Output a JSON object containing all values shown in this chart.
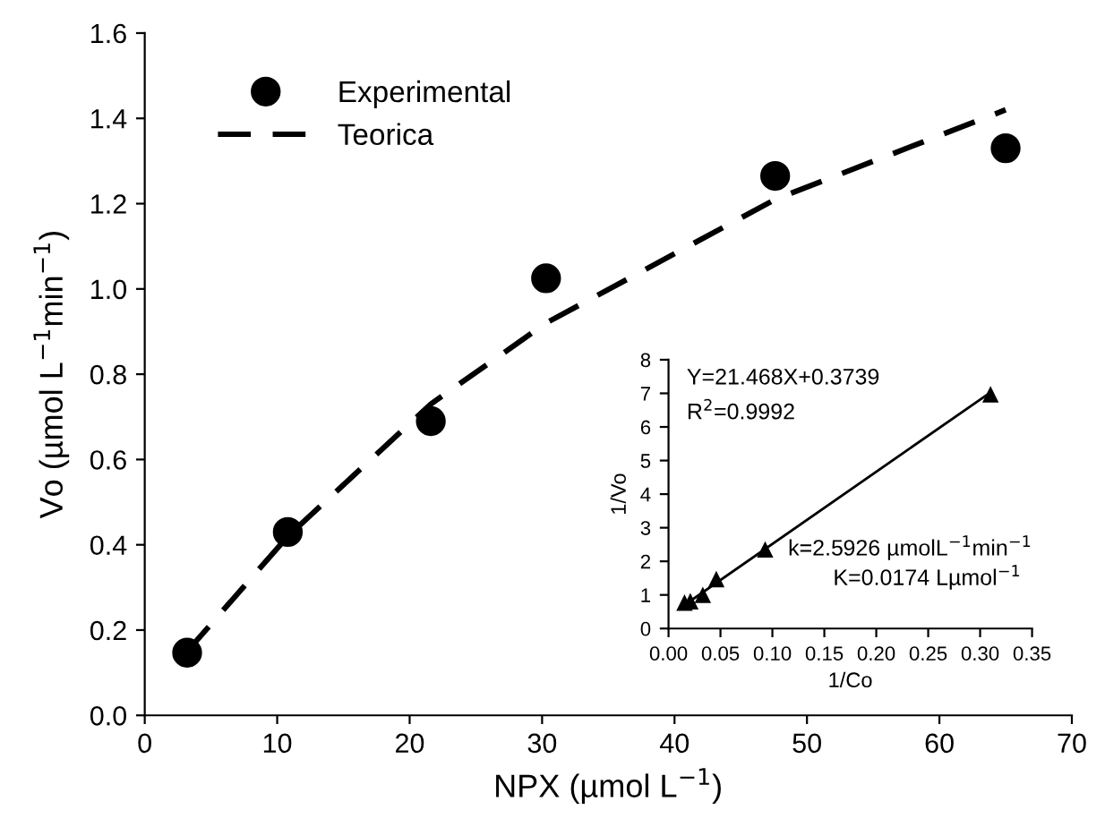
{
  "chart_data": [
    {
      "type": "scatter",
      "xlabel": "NPX (µmol L$^{−1}$)",
      "ylabel": "Vo (µmol L$^{−1}$min$^{−1}$)",
      "xlim": [
        0,
        70
      ],
      "xticks": [
        0,
        10,
        20,
        30,
        40,
        50,
        60,
        70
      ],
      "ylim": [
        0,
        1.6
      ],
      "yticks": [
        {
          "value": 0,
          "label": "0.0"
        },
        0.2,
        0.4,
        0.6,
        0.8,
        {
          "value": 1,
          "label": "1.0"
        },
        1.2,
        1.4,
        1.6
      ],
      "grid": false,
      "legend": "top left",
      "series": [
        {
          "name": "Experimental",
          "marker": "circle",
          "color": "#000000",
          "x": [
            3.2,
            10.8,
            21.6,
            30.3,
            47.6,
            65.0
          ],
          "values": [
            0.147,
            0.43,
            0.69,
            1.025,
            1.265,
            1.33
          ]
        },
        {
          "name": "Teorica",
          "type": "line",
          "line_style": "dashed",
          "color": "#000000",
          "x": [
            3.2,
            10.8,
            21.6,
            30.3,
            47.6,
            65.0
          ],
          "values": [
            0.15,
            0.42,
            0.73,
            0.92,
            1.21,
            1.42
          ]
        }
      ]
    },
    {
      "type": "scatter",
      "xlabel": "1/Co",
      "ylabel": "1/Vo",
      "xlim": [
        0,
        0.35
      ],
      "xticks": [
        {
          "value": 0,
          "label": "0.00"
        },
        0.05,
        {
          "value": 0.1,
          "label": "0.10"
        },
        0.15,
        {
          "value": 0.2,
          "label": "0.20"
        },
        0.25,
        {
          "value": 0.3,
          "label": "0.30"
        },
        0.35
      ],
      "ylim": [
        0,
        8
      ],
      "yticks": [
        0,
        1,
        2,
        3,
        4,
        5,
        6,
        7,
        8
      ],
      "grid": false,
      "annotations": [
        "Y=21.468X+0.3739",
        "R$^{2}$=0.9992",
        "k=2.5926 µmolL$^{−1}$min$^{−1}$",
        "K=0.0174 Lµmol$^{−1}$"
      ],
      "series": [
        {
          "marker": "triangle",
          "color": "#000000",
          "x": [
            0.0154,
            0.021,
            0.033,
            0.046,
            0.093,
            0.31
          ],
          "values": [
            0.75,
            0.79,
            0.98,
            1.45,
            2.33,
            6.95
          ]
        },
        {
          "type": "line",
          "line_style": "solid",
          "color": "#000000",
          "x": [
            0.0154,
            0.31
          ],
          "values": [
            0.7,
            7.03
          ]
        }
      ]
    }
  ]
}
